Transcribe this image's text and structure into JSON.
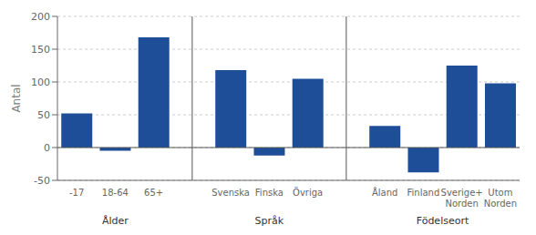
{
  "chart_data": {
    "type": "bar",
    "ylabel": "Antal",
    "groups": [
      {
        "label": "Ålder",
        "categories": [
          "-17",
          "18-64",
          "65+"
        ],
        "values": [
          52,
          -5,
          168
        ]
      },
      {
        "label": "Språk",
        "categories": [
          "Svenska",
          "Finska",
          "Övriga"
        ],
        "values": [
          118,
          -12,
          105
        ]
      },
      {
        "label": "Födelseort",
        "categories": [
          "Åland",
          "Finland",
          "Sverige+\nNorden",
          "Utom\nNorden"
        ],
        "values": [
          33,
          -38,
          125,
          98
        ]
      }
    ],
    "color": "#1F4E99",
    "ylim": [
      -50,
      200
    ],
    "yticks": [
      -50,
      0,
      50,
      100,
      150,
      200
    ],
    "grid": true
  }
}
